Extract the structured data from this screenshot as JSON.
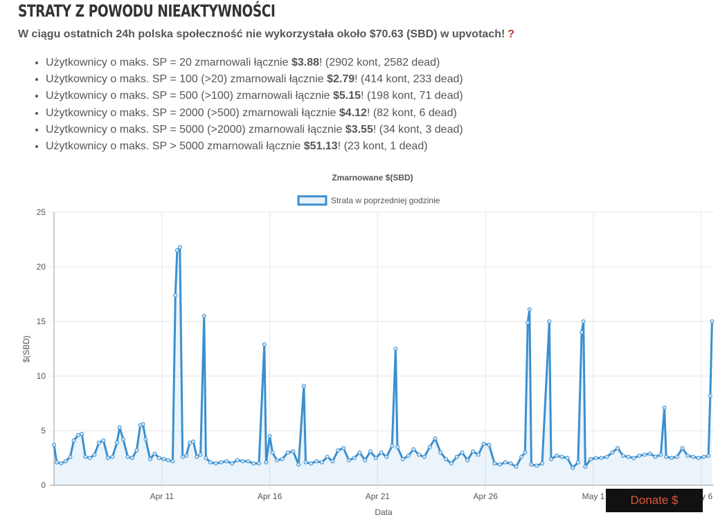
{
  "header": {
    "title": "STRATY Z POWODU NIEAKTYWNOŚCI",
    "subtitle": "W ciągu ostatnich 24h polska społeczność nie wykorzystała około $70.63 (SBD) w upvotach!",
    "help_icon": "question-mark-icon",
    "help_symbol": "?"
  },
  "stats": [
    {
      "prefix": "Użytkownicy o maks. SP = 20 zmarnowali łącznie ",
      "amount": "$3.88",
      "suffix": "! (2902 kont, 2582 dead)"
    },
    {
      "prefix": "Użytkownicy o maks. SP = 100 (>20) zmarnowali łącznie ",
      "amount": "$2.79",
      "suffix": "! (414 kont, 233 dead)"
    },
    {
      "prefix": "Użytkownicy o maks. SP = 500 (>100) zmarnowali łącznie ",
      "amount": "$5.15",
      "suffix": "! (198 kont, 71 dead)"
    },
    {
      "prefix": "Użytkownicy o maks. SP = 2000 (>500) zmarnowali łącznie ",
      "amount": "$4.12",
      "suffix": "! (82 kont, 6 dead)"
    },
    {
      "prefix": "Użytkownicy o maks. SP = 5000 (>2000) zmarnowali łącznie ",
      "amount": "$3.55",
      "suffix": "! (34 kont, 3 dead)"
    },
    {
      "prefix": "Użytkownicy o maks. SP > 5000 zmarnowali łącznie ",
      "amount": "$51.13",
      "suffix": "! (23 kont, 1 dead)"
    }
  ],
  "donate": {
    "label": "Donate $"
  },
  "chart_data": {
    "type": "line",
    "title": "Zmarnowane $(SBD)",
    "xlabel": "Data",
    "ylabel": "$(SBD)",
    "legend": {
      "position": "top",
      "label": "Strata w poprzedniej godzinie"
    },
    "ylim": [
      0,
      25
    ],
    "yticks": [
      0,
      5,
      10,
      15,
      20,
      25
    ],
    "xlim": [
      "2018-04-06T00:00",
      "2018-05-06T14:00"
    ],
    "xticks": [
      {
        "date": "2018-04-11",
        "label": "Apr 11"
      },
      {
        "date": "2018-04-16",
        "label": "Apr 16"
      },
      {
        "date": "2018-04-21",
        "label": "Apr 21"
      },
      {
        "date": "2018-04-26",
        "label": "Apr 26"
      },
      {
        "date": "2018-05-01",
        "label": "May 1"
      },
      {
        "date": "2018-05-06",
        "label": "May 6"
      }
    ],
    "grid": true,
    "colors": {
      "line": "#3a8fcf",
      "fill": "rgba(58,143,207,0.10)",
      "grid": "#e6e6e6",
      "axis": "#999999"
    },
    "series": [
      {
        "name": "Strata w poprzedniej godzinie",
        "points": [
          [
            "2018-04-06T00:00",
            3.7
          ],
          [
            "2018-04-06T03:00",
            2.1
          ],
          [
            "2018-04-06T08:00",
            2.0
          ],
          [
            "2018-04-06T13:00",
            2.2
          ],
          [
            "2018-04-06T18:00",
            2.6
          ],
          [
            "2018-04-06T22:00",
            4.1
          ],
          [
            "2018-04-07T03:00",
            4.6
          ],
          [
            "2018-04-07T07:00",
            4.7
          ],
          [
            "2018-04-07T11:00",
            2.6
          ],
          [
            "2018-04-07T16:00",
            2.5
          ],
          [
            "2018-04-07T21:00",
            2.8
          ],
          [
            "2018-04-08T02:00",
            3.9
          ],
          [
            "2018-04-08T07:00",
            4.1
          ],
          [
            "2018-04-08T12:00",
            2.5
          ],
          [
            "2018-04-08T17:00",
            2.6
          ],
          [
            "2018-04-08T22:00",
            3.9
          ],
          [
            "2018-04-09T01:00",
            5.3
          ],
          [
            "2018-04-09T05:00",
            4.2
          ],
          [
            "2018-04-09T10:00",
            2.6
          ],
          [
            "2018-04-09T15:00",
            2.5
          ],
          [
            "2018-04-09T20:00",
            3.2
          ],
          [
            "2018-04-10T00:00",
            5.5
          ],
          [
            "2018-04-10T03:00",
            5.6
          ],
          [
            "2018-04-10T06:00",
            4.2
          ],
          [
            "2018-04-10T11:00",
            2.4
          ],
          [
            "2018-04-10T16:00",
            2.9
          ],
          [
            "2018-04-10T21:00",
            2.5
          ],
          [
            "2018-04-11T02:00",
            2.4
          ],
          [
            "2018-04-11T07:00",
            2.3
          ],
          [
            "2018-04-11T12:00",
            2.2
          ],
          [
            "2018-04-11T15:00",
            17.4
          ],
          [
            "2018-04-11T17:00",
            21.5
          ],
          [
            "2018-04-11T20:00",
            21.8
          ],
          [
            "2018-04-11T23:00",
            2.6
          ],
          [
            "2018-04-12T03:00",
            2.7
          ],
          [
            "2018-04-12T07:00",
            3.9
          ],
          [
            "2018-04-12T11:00",
            4.0
          ],
          [
            "2018-04-12T15:00",
            2.6
          ],
          [
            "2018-04-12T19:00",
            2.8
          ],
          [
            "2018-04-12T23:00",
            15.5
          ],
          [
            "2018-04-13T01:00",
            2.5
          ],
          [
            "2018-04-13T06:00",
            2.1
          ],
          [
            "2018-04-13T12:00",
            2.0
          ],
          [
            "2018-04-13T18:00",
            2.1
          ],
          [
            "2018-04-14T00:00",
            2.2
          ],
          [
            "2018-04-14T06:00",
            2.0
          ],
          [
            "2018-04-14T12:00",
            2.3
          ],
          [
            "2018-04-14T18:00",
            2.2
          ],
          [
            "2018-04-15T00:00",
            2.2
          ],
          [
            "2018-04-15T06:00",
            2.0
          ],
          [
            "2018-04-15T12:00",
            2.0
          ],
          [
            "2018-04-15T18:00",
            12.9
          ],
          [
            "2018-04-15T20:00",
            2.1
          ],
          [
            "2018-04-16T00:00",
            4.5
          ],
          [
            "2018-04-16T03:00",
            3.0
          ],
          [
            "2018-04-16T08:00",
            2.3
          ],
          [
            "2018-04-16T14:00",
            2.4
          ],
          [
            "2018-04-16T20:00",
            3.0
          ],
          [
            "2018-04-17T02:00",
            3.1
          ],
          [
            "2018-04-17T08:00",
            1.9
          ],
          [
            "2018-04-17T14:00",
            9.1
          ],
          [
            "2018-04-17T16:00",
            2.1
          ],
          [
            "2018-04-17T22:00",
            2.0
          ],
          [
            "2018-04-18T04:00",
            2.2
          ],
          [
            "2018-04-18T10:00",
            2.1
          ],
          [
            "2018-04-18T16:00",
            2.6
          ],
          [
            "2018-04-18T22:00",
            2.2
          ],
          [
            "2018-04-19T04:00",
            3.2
          ],
          [
            "2018-04-19T10:00",
            3.4
          ],
          [
            "2018-04-19T16:00",
            2.3
          ],
          [
            "2018-04-19T22:00",
            2.5
          ],
          [
            "2018-04-20T04:00",
            3.0
          ],
          [
            "2018-04-20T10:00",
            2.3
          ],
          [
            "2018-04-20T16:00",
            3.1
          ],
          [
            "2018-04-20T22:00",
            2.5
          ],
          [
            "2018-04-21T04:00",
            3.0
          ],
          [
            "2018-04-21T10:00",
            2.6
          ],
          [
            "2018-04-21T16:00",
            3.6
          ],
          [
            "2018-04-21T20:00",
            12.5
          ],
          [
            "2018-04-21T22:00",
            3.5
          ],
          [
            "2018-04-22T04:00",
            2.4
          ],
          [
            "2018-04-22T10:00",
            2.7
          ],
          [
            "2018-04-22T16:00",
            3.3
          ],
          [
            "2018-04-22T22:00",
            2.8
          ],
          [
            "2018-04-23T04:00",
            2.6
          ],
          [
            "2018-04-23T10:00",
            3.5
          ],
          [
            "2018-04-23T16:00",
            4.3
          ],
          [
            "2018-04-23T22:00",
            3.0
          ],
          [
            "2018-04-24T04:00",
            2.4
          ],
          [
            "2018-04-24T10:00",
            2.0
          ],
          [
            "2018-04-24T16:00",
            2.6
          ],
          [
            "2018-04-24T22:00",
            3.0
          ],
          [
            "2018-04-25T04:00",
            2.3
          ],
          [
            "2018-04-25T10:00",
            3.1
          ],
          [
            "2018-04-25T16:00",
            2.8
          ],
          [
            "2018-04-25T22:00",
            3.8
          ],
          [
            "2018-04-26T04:00",
            3.7
          ],
          [
            "2018-04-26T10:00",
            2.0
          ],
          [
            "2018-04-26T16:00",
            1.9
          ],
          [
            "2018-04-26T22:00",
            2.1
          ],
          [
            "2018-04-27T04:00",
            2.0
          ],
          [
            "2018-04-27T10:00",
            1.7
          ],
          [
            "2018-04-27T16:00",
            2.6
          ],
          [
            "2018-04-27T20:00",
            3.0
          ],
          [
            "2018-04-27T23:00",
            14.9
          ],
          [
            "2018-04-28T01:00",
            16.1
          ],
          [
            "2018-04-28T03:00",
            1.9
          ],
          [
            "2018-04-28T09:00",
            1.8
          ],
          [
            "2018-04-28T15:00",
            2.0
          ],
          [
            "2018-04-28T23:00",
            15.0
          ],
          [
            "2018-04-29T01:00",
            2.4
          ],
          [
            "2018-04-29T07:00",
            2.7
          ],
          [
            "2018-04-29T13:00",
            2.6
          ],
          [
            "2018-04-29T19:00",
            2.5
          ],
          [
            "2018-04-30T01:00",
            1.6
          ],
          [
            "2018-04-30T07:00",
            2.1
          ],
          [
            "2018-04-30T11:00",
            14.0
          ],
          [
            "2018-04-30T13:00",
            15.0
          ],
          [
            "2018-04-30T15:00",
            1.7
          ],
          [
            "2018-04-30T21:00",
            2.4
          ],
          [
            "2018-05-01T03:00",
            2.5
          ],
          [
            "2018-05-01T09:00",
            2.5
          ],
          [
            "2018-05-01T15:00",
            2.6
          ],
          [
            "2018-05-01T21:00",
            3.0
          ],
          [
            "2018-05-02T03:00",
            3.4
          ],
          [
            "2018-05-02T09:00",
            2.7
          ],
          [
            "2018-05-02T15:00",
            2.6
          ],
          [
            "2018-05-02T21:00",
            2.5
          ],
          [
            "2018-05-03T03:00",
            2.7
          ],
          [
            "2018-05-03T09:00",
            2.8
          ],
          [
            "2018-05-03T15:00",
            2.9
          ],
          [
            "2018-05-03T21:00",
            2.6
          ],
          [
            "2018-05-04T03:00",
            2.8
          ],
          [
            "2018-05-04T07:00",
            7.1
          ],
          [
            "2018-05-04T09:00",
            2.6
          ],
          [
            "2018-05-04T15:00",
            2.5
          ],
          [
            "2018-05-04T21:00",
            2.6
          ],
          [
            "2018-05-05T03:00",
            3.4
          ],
          [
            "2018-05-05T09:00",
            2.7
          ],
          [
            "2018-05-05T15:00",
            2.6
          ],
          [
            "2018-05-05T21:00",
            2.5
          ],
          [
            "2018-05-06T03:00",
            2.6
          ],
          [
            "2018-05-06T08:00",
            2.7
          ],
          [
            "2018-05-06T10:00",
            8.2
          ],
          [
            "2018-05-06T12:00",
            15.0
          ]
        ]
      }
    ]
  }
}
